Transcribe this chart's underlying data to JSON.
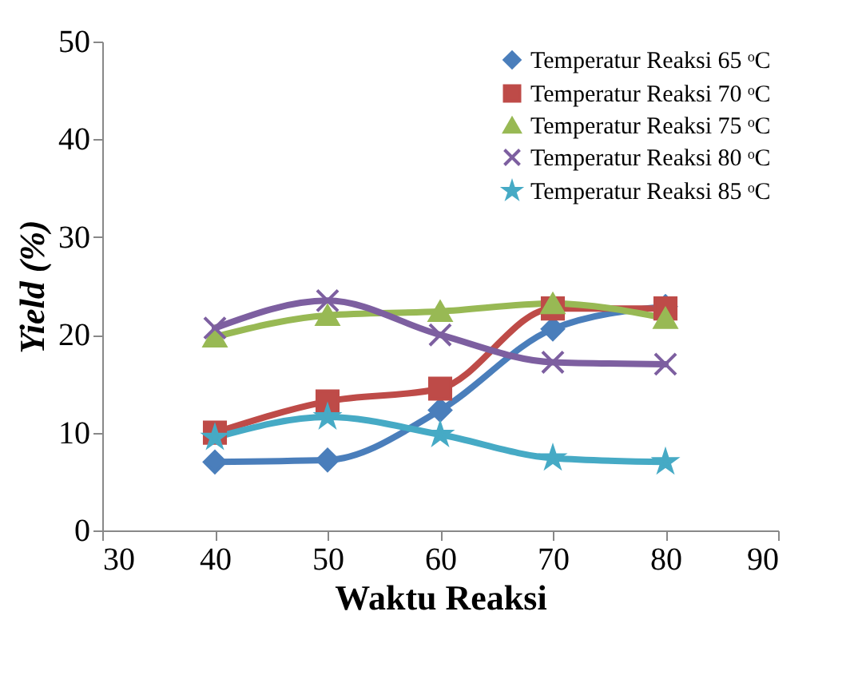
{
  "chart_data": {
    "type": "line",
    "xlabel": "Waktu Reaksi",
    "ylabel": "Yield (%)",
    "x": [
      40,
      50,
      60,
      70,
      80
    ],
    "xlim": [
      30,
      90
    ],
    "xticks": [
      30,
      40,
      50,
      60,
      70,
      80,
      90
    ],
    "ylim": [
      0,
      50
    ],
    "yticks": [
      0,
      10,
      20,
      30,
      40,
      50
    ],
    "legend": "top right",
    "grid": false,
    "series": [
      {
        "name": "Temperatur Reaksi 65 ᵒC",
        "color": "#4a7ebb",
        "marker": "diamond",
        "values": [
          7.0,
          7.2,
          12.3,
          20.6,
          22.9
        ]
      },
      {
        "name": "Temperatur Reaksi 70 ᵒC",
        "color": "#be4b48",
        "marker": "square",
        "values": [
          10.0,
          13.2,
          14.5,
          22.7,
          22.7
        ]
      },
      {
        "name": "Temperatur Reaksi 75 ᵒC",
        "color": "#98b954",
        "marker": "triangle",
        "values": [
          19.8,
          22.0,
          22.4,
          23.2,
          21.7
        ]
      },
      {
        "name": "Temperatur Reaksi 80 ᵒC",
        "color": "#7d5fa0",
        "marker": "cross",
        "values": [
          20.7,
          23.5,
          20.0,
          17.2,
          17.0
        ]
      },
      {
        "name": "Temperatur Reaksi 85 ᵒC",
        "color": "#46aac5",
        "marker": "star",
        "values": [
          9.5,
          11.6,
          9.8,
          7.4,
          7.0
        ]
      }
    ]
  }
}
